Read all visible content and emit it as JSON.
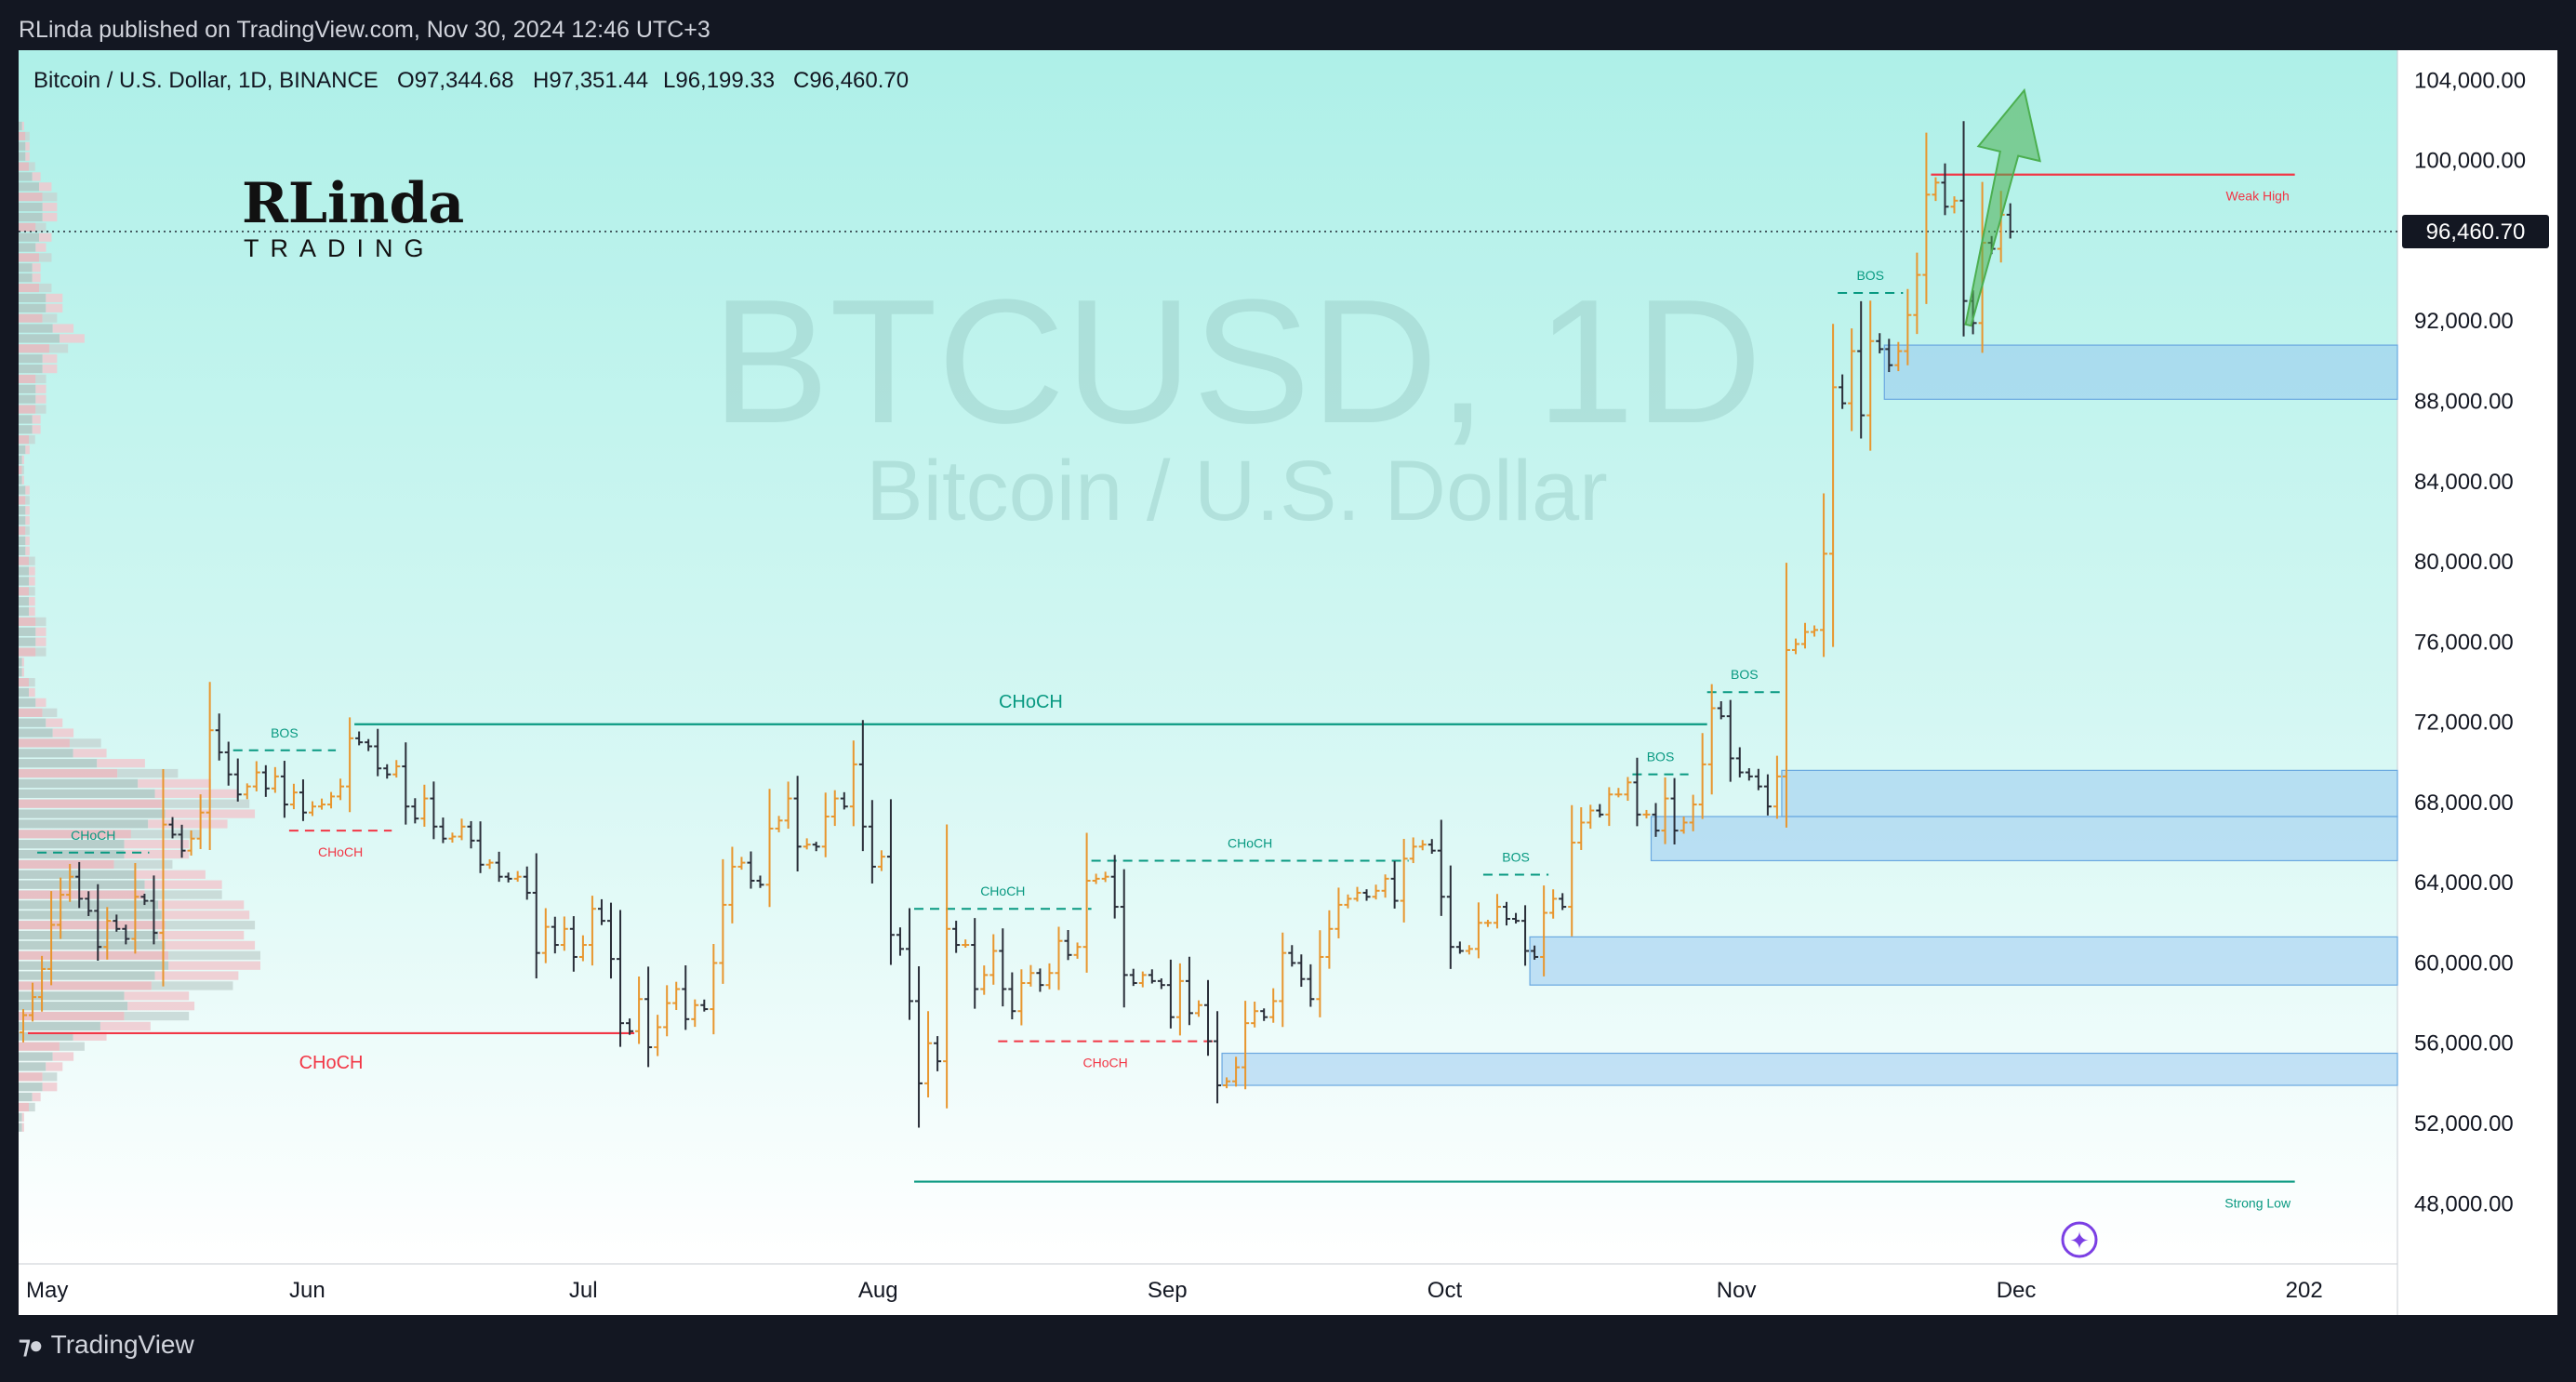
{
  "header": {
    "published_text": "RLinda published on TradingView.com, Nov 30, 2024 12:46 UTC+3"
  },
  "footer": {
    "brand": "TradingView"
  },
  "logo": {
    "text_main": "RLinda",
    "text_sub": "TRADING"
  },
  "chart_data": {
    "type": "candlestick",
    "title": "Bitcoin / U.S. Dollar, 1D, BINANCE",
    "ohlc_legend": {
      "open": "O97,344.68",
      "high": "H97,351.44",
      "low": "L96,199.33",
      "close": "C96,460.70"
    },
    "watermark": {
      "symbol": "BTCUSD, 1D",
      "name": "Bitcoin / U.S. Dollar"
    },
    "last_price": 96460.7,
    "last_price_label": "96,460.70",
    "x_ticks": [
      "May",
      "Jun",
      "Jul",
      "Aug",
      "Sep",
      "Oct",
      "Nov",
      "Dec",
      "202"
    ],
    "y_ticks": [
      "104,000.00",
      "100,000.00",
      "96,460.70",
      "92,000.00",
      "88,000.00",
      "84,000.00",
      "80,000.00",
      "76,000.00",
      "72,000.00",
      "68,000.00",
      "64,000.00",
      "60,000.00",
      "56,000.00",
      "52,000.00",
      "48,000.00"
    ],
    "y_range": [
      45000,
      105500
    ],
    "x_range": [
      "2024-05-01",
      "2025-01-11"
    ],
    "daily_closes": [
      {
        "from": "2024-05-01",
        "closes": [
          57400,
          58300,
          59700,
          61900,
          63400,
          64300,
          63200,
          62600,
          60800,
          62100,
          61700,
          61200,
          63300,
          63100,
          61500,
          66900,
          66400,
          65600,
          66200,
          67500,
          71600,
          70500,
          69400,
          68400,
          68800,
          69500,
          68700,
          69300,
          67900,
          68500,
          67500
        ]
      },
      {
        "from": "2024-06-01",
        "closes": [
          67800,
          67900,
          68300,
          68800,
          71200,
          71000,
          70800,
          69700,
          69400,
          69800,
          67800,
          67200,
          68200,
          66800,
          66200,
          66300,
          66800,
          66100,
          64900,
          65000,
          64300,
          64200,
          64300,
          63500,
          60500,
          61800,
          60900,
          61700,
          60300,
          60900
        ]
      },
      {
        "from": "2024-07-01",
        "closes": [
          62700,
          62100,
          60200,
          57000,
          56600,
          58200,
          55800,
          56800,
          58000,
          58700,
          57200,
          57900,
          57700,
          60000,
          62900,
          64800,
          65000,
          64100,
          63900,
          66700,
          67100,
          68200,
          65800,
          65900,
          65800,
          67300,
          68200,
          67800,
          69900,
          66800,
          64800
        ]
      },
      {
        "from": "2024-08-01",
        "closes": [
          65300,
          61400,
          60700,
          58100,
          54000,
          56000,
          55100,
          61700,
          60900,
          60900,
          58700,
          59400,
          60600,
          58700,
          57600,
          59000,
          59500,
          58900,
          59500,
          61100,
          60400,
          60800,
          64100,
          64200,
          64300,
          62800,
          59400,
          59000,
          59400,
          59100,
          58900
        ]
      },
      {
        "from": "2024-09-01",
        "closes": [
          57300,
          59100,
          57500,
          57900,
          56100,
          53900,
          54100,
          54800,
          57000,
          57600,
          57300,
          58100,
          60500,
          60000,
          59200,
          58200,
          60300,
          61700,
          62900,
          63200,
          63500,
          63300,
          63600,
          64200,
          63100,
          65200,
          65800,
          65900,
          65600,
          63300
        ]
      },
      {
        "from": "2024-10-01",
        "closes": [
          60800,
          60600,
          60700,
          62000,
          62000,
          62800,
          62200,
          62100,
          60600,
          60300,
          62500,
          63200,
          62800,
          66000,
          67000,
          67600,
          67400,
          68400,
          68400,
          69000,
          67400,
          67400,
          66600,
          68200,
          66600,
          67000,
          67900,
          69900,
          72700,
          72300,
          70200
        ]
      },
      {
        "from": "2024-11-01",
        "closes": [
          69500,
          69300,
          68800,
          67800,
          69300,
          75600,
          75900,
          76500,
          76600,
          80400,
          88700,
          87900,
          90500,
          87300,
          91000,
          90600,
          89800,
          90500,
          92300,
          94300,
          98300,
          98900,
          97700,
          98000,
          93000,
          91900,
          95900,
          95600,
          97300,
          96460
        ]
      }
    ],
    "annotations": [
      {
        "label": "BOS",
        "style": "dashed",
        "color": "#089981",
        "price": 70600,
        "from": "2024-05-24",
        "to": "2024-06-04"
      },
      {
        "label": "CHoCH",
        "style": "dashed",
        "color": "#089981",
        "price": 65500,
        "from": "2024-05-03",
        "to": "2024-05-15"
      },
      {
        "label": "CHoCH",
        "style": "dashed",
        "color": "#f23645",
        "price": 66600,
        "from": "2024-05-30",
        "to": "2024-06-10"
      },
      {
        "label": "CHoCH",
        "style": "solid",
        "color": "#089981",
        "price": 71900,
        "from": "2024-06-06",
        "to": "2024-10-29"
      },
      {
        "label": "CHoCH",
        "style": "solid",
        "color": "#f23645",
        "price": 56500,
        "from": "2024-05-02",
        "to": "2024-07-06"
      },
      {
        "label": "CHoCH",
        "style": "dashed",
        "color": "#089981",
        "price": 62700,
        "from": "2024-08-05",
        "to": "2024-08-24"
      },
      {
        "label": "CHoCH",
        "style": "dashed",
        "color": "#089981",
        "price": 65100,
        "from": "2024-08-24",
        "to": "2024-09-27"
      },
      {
        "label": "CHoCH",
        "style": "dashed",
        "color": "#f23645",
        "price": 56100,
        "from": "2024-08-14",
        "to": "2024-09-06"
      },
      {
        "label": "BOS",
        "style": "dashed",
        "color": "#089981",
        "price": 64400,
        "from": "2024-10-05",
        "to": "2024-10-12"
      },
      {
        "label": "BOS",
        "style": "dashed",
        "color": "#089981",
        "price": 69400,
        "from": "2024-10-21",
        "to": "2024-10-27"
      },
      {
        "label": "BOS",
        "style": "dashed",
        "color": "#089981",
        "price": 73500,
        "from": "2024-10-29",
        "to": "2024-11-06"
      },
      {
        "label": "BOS",
        "style": "dashed",
        "color": "#089981",
        "price": 93400,
        "from": "2024-11-12",
        "to": "2024-11-19"
      },
      {
        "label": "Weak High",
        "style": "solid",
        "color": "#f23645",
        "price": 99300,
        "from": "2024-11-22",
        "to": "2024-12-31"
      },
      {
        "label": "Strong Low",
        "style": "solid",
        "color": "#089981",
        "price": 49100,
        "from": "2024-08-05",
        "to": "2024-12-31"
      }
    ],
    "zones": [
      {
        "from": "2024-11-17",
        "price_low": 88100,
        "price_high": 90800
      },
      {
        "from": "2024-11-06",
        "price_low": 67300,
        "price_high": 69600
      },
      {
        "from": "2024-10-23",
        "price_low": 65100,
        "price_high": 67300
      },
      {
        "from": "2024-10-10",
        "price_low": 58900,
        "price_high": 61300
      },
      {
        "from": "2024-09-07",
        "price_low": 53900,
        "price_high": 55500
      }
    ],
    "arrow": {
      "from_date": "2024-11-26",
      "from_price": 91800,
      "to_date": "2024-12-02",
      "to_price": 103500,
      "color": "#4caf50"
    },
    "volume_profile": true,
    "grid": false
  }
}
